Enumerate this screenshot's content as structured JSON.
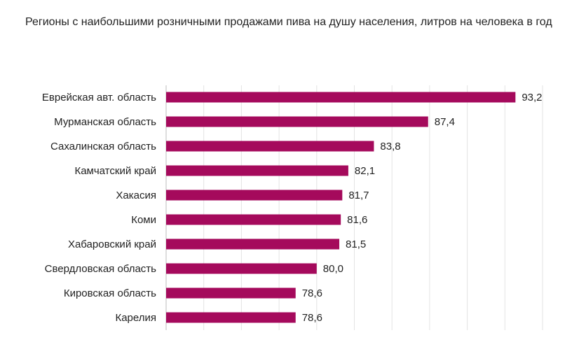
{
  "title": "Регионы с наибольшими розничными продажами пива на душу населения, литров на человека в год",
  "chart_data": {
    "type": "bar",
    "orientation": "horizontal",
    "title": "Регионы с наибольшими розничными продажами пива на душу населения, литров на человека в год",
    "categories": [
      "Еврейская авт. область",
      "Мурманская область",
      "Сахалинская область",
      "Камчатский край",
      "Хакасия",
      "Коми",
      "Хабаровский край",
      "Свердловская область",
      "Кировская область",
      "Карелия"
    ],
    "values": [
      93.2,
      87.4,
      83.8,
      82.1,
      81.7,
      81.6,
      81.5,
      80.0,
      78.6,
      78.6
    ],
    "value_labels": [
      "93,2",
      "87,4",
      "83,8",
      "82,1",
      "81,7",
      "81,6",
      "81,5",
      "80,0",
      "78,6",
      "78,6"
    ],
    "xlim": [
      70,
      95
    ],
    "grid": "vertical",
    "bar_color": "#a50a5c",
    "grid_color": "#e3e3e3"
  }
}
